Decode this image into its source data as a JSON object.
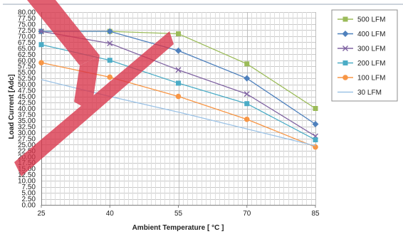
{
  "chart_data": {
    "type": "line",
    "title": "",
    "xlabel": "Ambient Temperature [ °C ]",
    "ylabel": "Load Current [Adc]",
    "x": [
      25,
      40,
      55,
      70,
      85
    ],
    "x_tick_labels": [
      "25",
      "40",
      "55",
      "70",
      "85"
    ],
    "ylim": [
      0,
      80
    ],
    "y_tick_step": 2.5,
    "y_tick_labels": [
      "0.00",
      "2.50",
      "5.00",
      "7.50",
      "10.00",
      "12.50",
      "15.00",
      "17.50",
      "20.00",
      "22.50",
      "25.00",
      "27.50",
      "30.00",
      "32.50",
      "35.00",
      "37.50",
      "40.00",
      "42.50",
      "45.00",
      "47.50",
      "50.00",
      "52.50",
      "55.00",
      "57.50",
      "60.00",
      "62.50",
      "65.00",
      "67.50",
      "70.00",
      "72.50",
      "75.00",
      "77.50",
      "80.00"
    ],
    "vertical_gridlines": true,
    "horizontal_gridlines": true,
    "legend_position": "top-right",
    "series": [
      {
        "name": "500 LFM",
        "color": "#9BBB59",
        "marker": "square",
        "values": [
          72,
          72,
          71,
          58.5,
          40
        ]
      },
      {
        "name": "400 LFM",
        "color": "#4F81BD",
        "marker": "diamond",
        "values": [
          72,
          72,
          64,
          52.5,
          33.5
        ]
      },
      {
        "name": "300 LFM",
        "color": "#8064A2",
        "marker": "x",
        "values": [
          72,
          67,
          56,
          46,
          28.5
        ]
      },
      {
        "name": "200 LFM",
        "color": "#4BACC6",
        "marker": "square",
        "values": [
          66.5,
          60,
          50.5,
          42,
          27
        ]
      },
      {
        "name": "100 LFM",
        "color": "#F79646",
        "marker": "circle",
        "values": [
          59,
          53,
          45,
          35.5,
          24
        ]
      },
      {
        "name": "30 LFM",
        "color": "#9DC3E6",
        "marker": "none",
        "values": [
          52,
          45,
          38.5,
          31.5,
          24.5
        ]
      }
    ]
  },
  "watermark": {
    "text": "X",
    "color": "#D9344A"
  }
}
